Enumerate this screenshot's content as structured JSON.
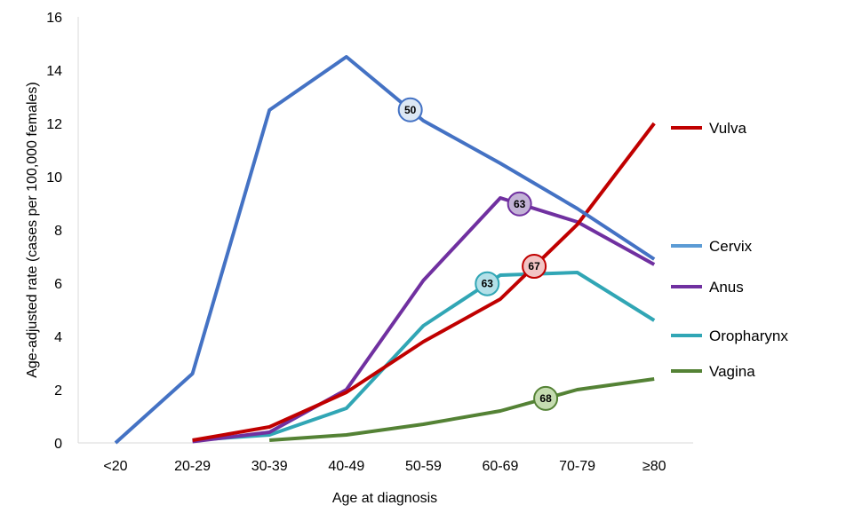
{
  "chart_data": {
    "type": "line",
    "title": "",
    "xlabel": "Age at diagnosis",
    "ylabel": "Age-adjusted rate (cases per 100,000 females)",
    "ylim": [
      0,
      16
    ],
    "yticks": [
      0,
      2,
      4,
      6,
      8,
      10,
      12,
      14,
      16
    ],
    "categories": [
      "<20",
      "20-29",
      "30-39",
      "40-49",
      "50-59",
      "60-69",
      "70-79",
      "≥80"
    ],
    "grid": false,
    "legend_placement": "right",
    "series": [
      {
        "name": "Vulva",
        "color": "#c00000",
        "legend_color": "#c00000",
        "values": [
          null,
          0.1,
          0.6,
          1.9,
          3.8,
          5.4,
          8.2,
          12.0
        ],
        "median_label": "67",
        "median_fill": "#f2c4c4"
      },
      {
        "name": "Cervix",
        "color": "#4472c4",
        "legend_color": "#5b9bd5",
        "values": [
          0,
          2.6,
          12.5,
          14.5,
          12.1,
          10.5,
          8.8,
          6.9
        ],
        "median_label": "50",
        "median_fill": "#dde8f4"
      },
      {
        "name": "Anus",
        "color": "#7030a0",
        "legend_color": "#7030a0",
        "values": [
          null,
          0.05,
          0.4,
          2.0,
          6.1,
          9.2,
          8.3,
          6.7
        ],
        "median_label": "63",
        "median_fill": "#c3b3d6"
      },
      {
        "name": "Oropharynx",
        "color": "#31a6b5",
        "legend_color": "#31a6b5",
        "values": [
          null,
          0.1,
          0.3,
          1.3,
          4.4,
          6.3,
          6.4,
          4.6
        ],
        "median_label": "63",
        "median_fill": "#b3e0e8"
      },
      {
        "name": "Vagina",
        "color": "#548235",
        "legend_color": "#548235",
        "values": [
          null,
          null,
          0.1,
          0.3,
          0.7,
          1.2,
          2.0,
          2.4
        ],
        "median_label": "68",
        "median_fill": "#c5dcb0"
      }
    ]
  }
}
